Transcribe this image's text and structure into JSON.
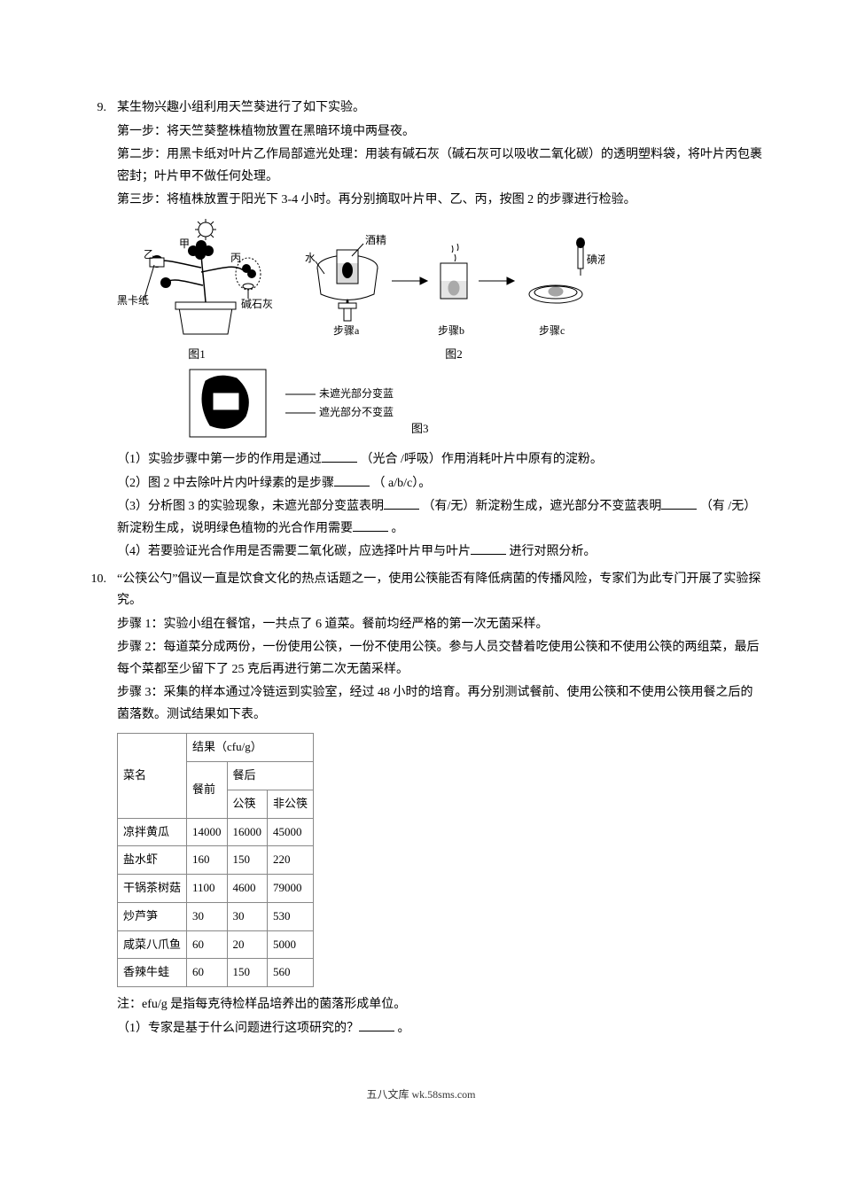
{
  "q9": {
    "num": "9.",
    "intro": "某生物兴趣小组利用天竺葵进行了如下实验。",
    "step1": "第一步：将天竺葵整株植物放置在黑暗环境中两昼夜。",
    "step2": "第二步：用黑卡纸对叶片乙作局部遮光处理：用装有碱石灰（碱石灰可以吸收二氧化碳）的透明塑料袋，将叶片丙包裹密封；叶片甲不做任何处理。",
    "step3": "第三步：将植株放置于阳光下 3-4 小时。再分别摘取叶片甲、乙、丙，按图 2 的步骤进行检验。",
    "fig1_caption": "图1",
    "fig2_caption": "图2",
    "fig3_caption": "图3",
    "fig1_labels": {
      "jia": "甲",
      "yi": "乙",
      "bing": "丙",
      "heikazhi": "黑卡纸",
      "jianshihui": "碱石灰"
    },
    "fig2_labels": {
      "jiujing": "酒精",
      "shui": "水",
      "dianye": "碘液",
      "sa": "步骤a",
      "sb": "步骤b",
      "sc": "步骤c"
    },
    "fig3_labels": {
      "l1": "未遮光部分变蓝",
      "l2": "遮光部分不变蓝"
    },
    "p1a": "（1）实验步骤中第一步的作用是通过",
    "p1b": "（光合 /呼吸）作用消耗叶片中原有的淀粉。",
    "p2a": "（2）图 2 中去除叶片内叶绿素的是步骤",
    "p2b": "（ a/b/c）。",
    "p3a": "（3）分析图 3 的实验现象，未遮光部分变蓝表明",
    "p3b": "（有/无）新淀粉生成，遮光部分不变蓝表明",
    "p3c": "（有 /无）新淀粉生成，说明绿色植物的光合作用需要",
    "p3d": "。",
    "p4a": "（4）若要验证光合作用是否需要二氧化碳，应选择叶片甲与叶片",
    "p4b": "进行对照分析。"
  },
  "q10": {
    "num": "10.",
    "intro": "“公筷公勺”倡议一直是饮食文化的热点话题之一，使用公筷能否有降低病菌的传播风险，专家们为此专门开展了实验探究。",
    "s1": "步骤 1：实验小组在餐馆，一共点了 6 道菜。餐前均经严格的第一次无菌采样。",
    "s2": "步骤 2：每道菜分成两份，一份使用公筷，一份不使用公筷。参与人员交替着吃使用公筷和不使用公筷的两组菜，最后每个菜都至少留下了 25 克后再进行第二次无菌采样。",
    "s3": "步骤 3：采集的样本通过冷链运到实验室，经过 48 小时的培育。再分别测试餐前、使用公筷和不使用公筷用餐之后的菌落数。测试结果如下表。",
    "table": {
      "h_name": "菜名",
      "h_result": "结果（cfu/g）",
      "h_before": "餐前",
      "h_after": "餐后",
      "h_pub": "公筷",
      "h_nonpub": "非公筷",
      "rows": [
        {
          "name": "凉拌黄瓜",
          "before": "14000",
          "pub": "16000",
          "nonpub": "45000"
        },
        {
          "name": "盐水虾",
          "before": "160",
          "pub": "150",
          "nonpub": "220"
        },
        {
          "name": "干锅茶树菇",
          "before": "1100",
          "pub": "4600",
          "nonpub": "79000"
        },
        {
          "name": "炒芦笋",
          "before": "30",
          "pub": "30",
          "nonpub": "530"
        },
        {
          "name": "咸菜八爪鱼",
          "before": "60",
          "pub": "20",
          "nonpub": "5000"
        },
        {
          "name": "香辣牛蛙",
          "before": "60",
          "pub": "150",
          "nonpub": "560"
        }
      ]
    },
    "note": "注：efu/g 是指每克待检样品培养出的菌落形成单位。",
    "p1a": "（1）专家是基于什么问题进行这项研究的？",
    "p1b": "。"
  },
  "footer": "五八文库 wk.58sms.com",
  "blank_widths": {
    "short": "40px",
    "mid": "44px"
  }
}
